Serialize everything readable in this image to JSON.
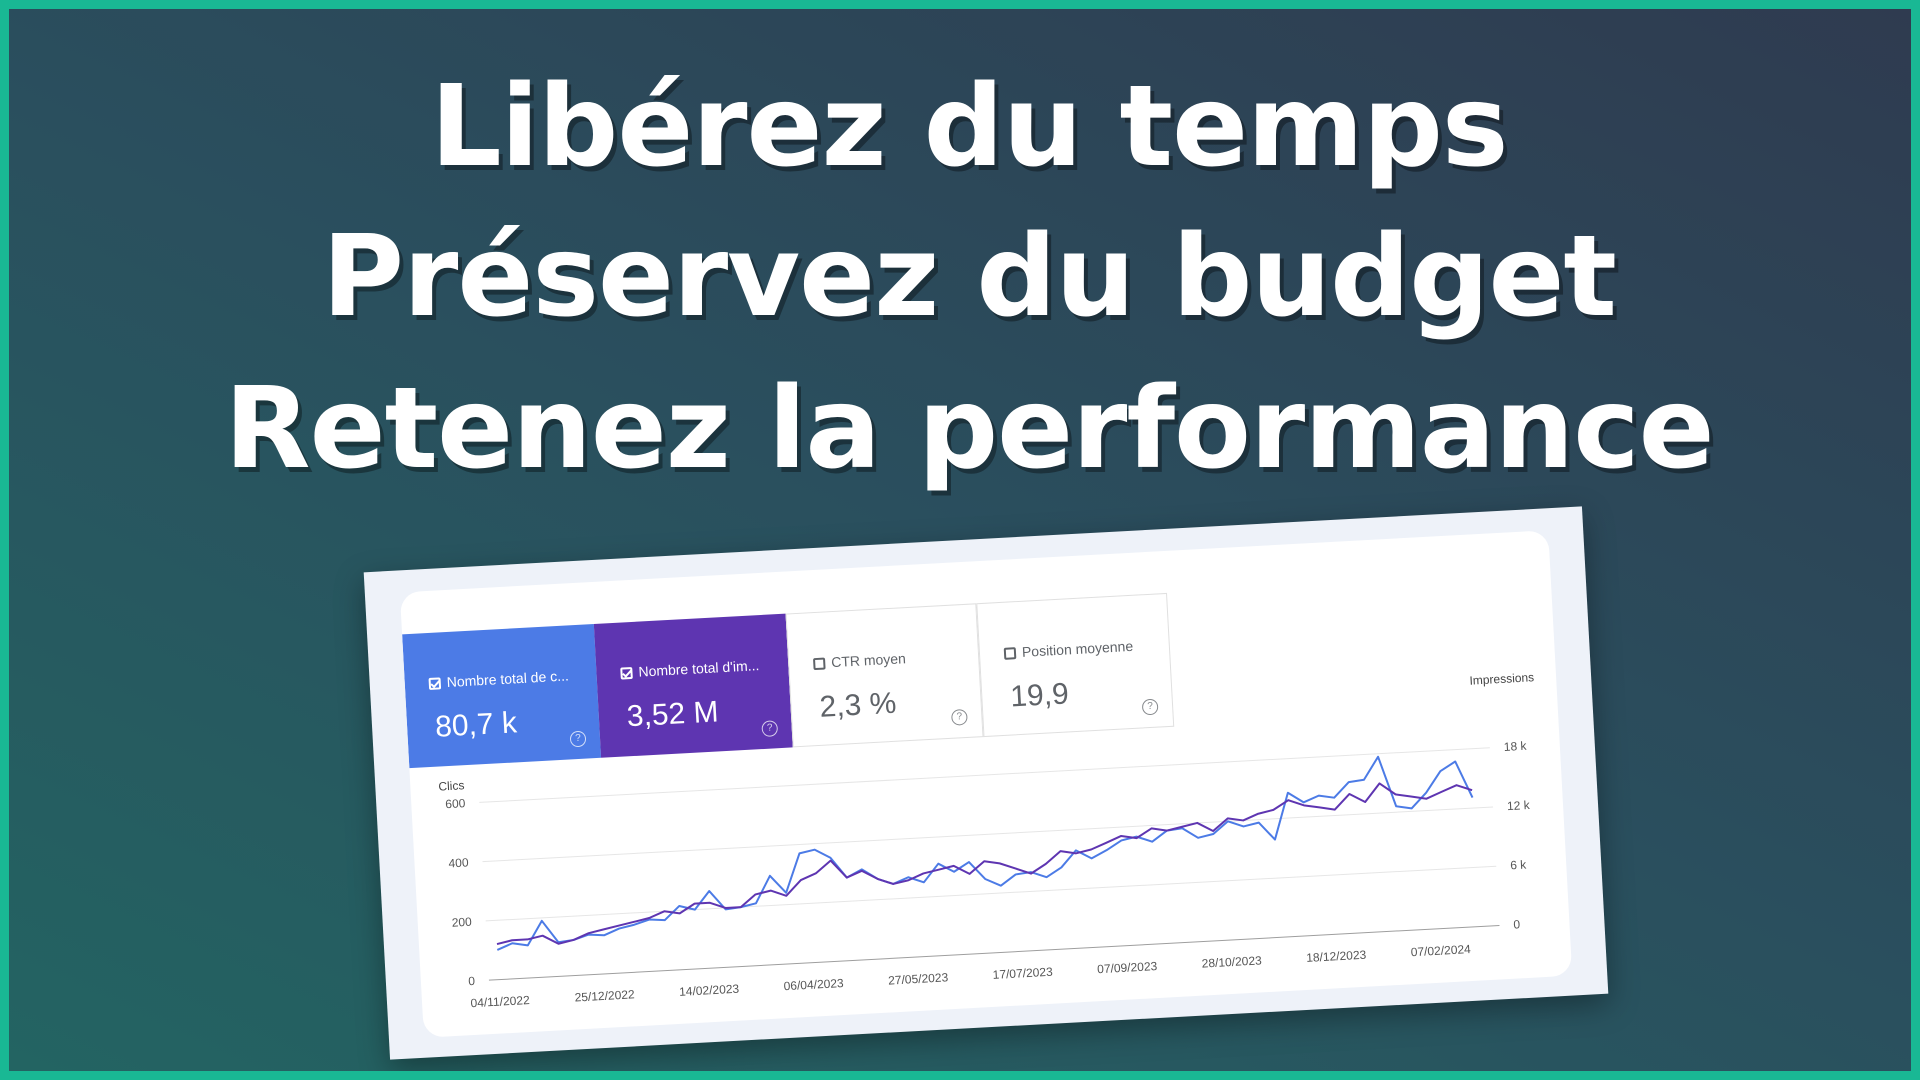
{
  "headline": {
    "line1": "Libérez du temps",
    "line2": "Préservez du budget",
    "line3": "Retenez la performance"
  },
  "metrics": [
    {
      "label": "Nombre total de c...",
      "value": "80,7 k",
      "checked": true,
      "color": "#4c7be6"
    },
    {
      "label": "Nombre total d'im...",
      "value": "3,52 M",
      "checked": true,
      "color": "#5e35b1"
    },
    {
      "label": "CTR moyen",
      "value": "2,3 %",
      "checked": false
    },
    {
      "label": "Position moyenne",
      "value": "19,9",
      "checked": false
    }
  ],
  "chart_data": {
    "type": "line",
    "left_axis_label": "Clics",
    "right_axis_label": "Impressions",
    "left_ticks": [
      "0",
      "200",
      "400",
      "600"
    ],
    "right_ticks": [
      "0",
      "6 k",
      "12 k",
      "18 k"
    ],
    "ylim_left": [
      0,
      600
    ],
    "ylim_right": [
      0,
      18000
    ],
    "x_ticks": [
      "04/11/2022",
      "25/12/2022",
      "14/02/2023",
      "06/04/2023",
      "27/05/2023",
      "17/07/2023",
      "07/09/2023",
      "28/10/2023",
      "18/12/2023",
      "07/02/2024"
    ],
    "grid": true,
    "legend": "none",
    "series": [
      {
        "name": "Clics",
        "axis": "left",
        "color": "#4c7be6",
        "values": [
          100,
          120,
          110,
          190,
          115,
          120,
          135,
          130,
          150,
          160,
          175,
          170,
          215,
          200,
          260,
          195,
          200,
          210,
          300,
          240,
          370,
          380,
          350,
          280,
          305,
          270,
          250,
          270,
          250,
          310,
          280,
          310,
          250,
          225,
          260,
          265,
          245,
          275,
          330,
          300,
          325,
          355,
          365,
          345,
          380,
          385,
          350,
          360,
          400,
          380,
          390,
          330,
          485,
          450,
          470,
          460,
          510,
          515,
          590,
          420,
          410,
          460,
          530,
          560,
          435
        ]
      },
      {
        "name": "Impressions",
        "axis": "right",
        "color": "#5e35b1",
        "values": [
          3600,
          3900,
          3900,
          4200,
          3300,
          3600,
          4200,
          4500,
          4800,
          5100,
          5400,
          6000,
          5700,
          6600,
          6600,
          6000,
          6000,
          7200,
          7500,
          6900,
          8400,
          9000,
          10200,
          8400,
          9000,
          8100,
          7500,
          7800,
          8400,
          8700,
          9000,
          8100,
          9300,
          9000,
          8400,
          7800,
          8700,
          9900,
          9600,
          9900,
          10500,
          11100,
          10800,
          11700,
          11400,
          11700,
          12000,
          11100,
          12300,
          12000,
          12600,
          12900,
          13800,
          13200,
          12900,
          12600,
          14100,
          13200,
          15000,
          13800,
          13500,
          13200,
          13800,
          14400,
          13800
        ]
      }
    ]
  }
}
